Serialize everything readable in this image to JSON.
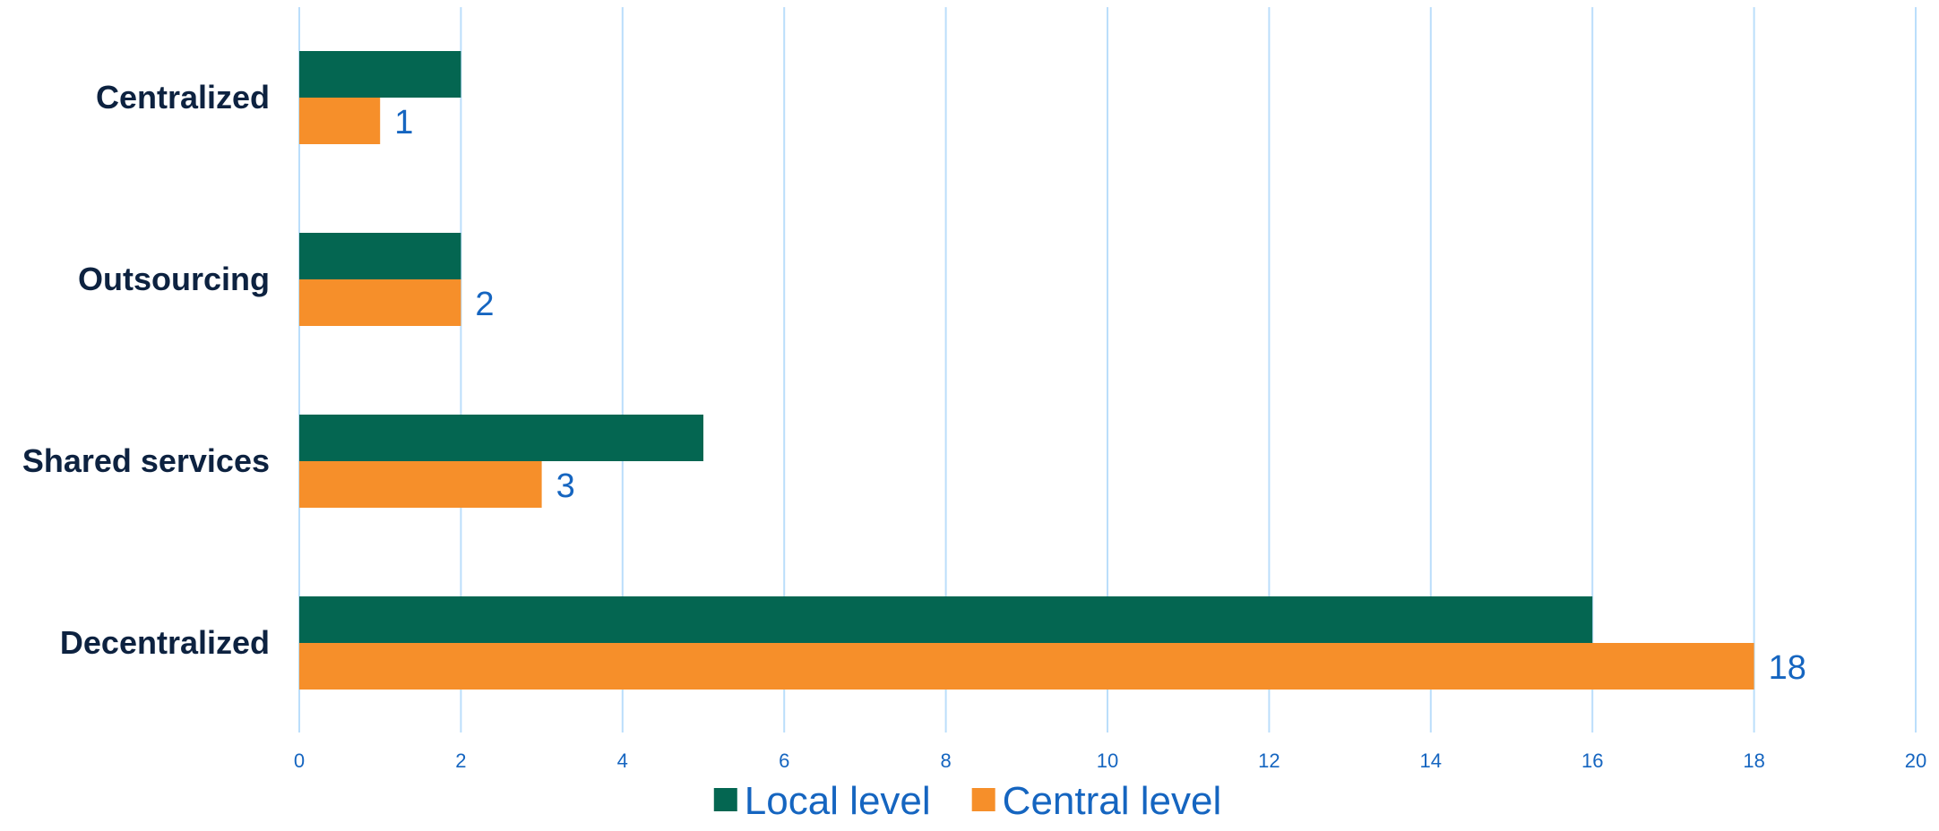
{
  "chart_data": {
    "type": "bar",
    "orientation": "horizontal",
    "categories": [
      "Centralized",
      "Outsourcing",
      "Shared services",
      "Decentralized"
    ],
    "series": [
      {
        "name": "Local level",
        "values": [
          2,
          2,
          5,
          16
        ],
        "color": "#046651"
      },
      {
        "name": "Central level",
        "values": [
          1,
          2,
          3,
          18
        ],
        "color": "#F68F2A"
      }
    ],
    "data_labels": {
      "series": "Central level",
      "values": [
        "1",
        "2",
        "3",
        "18"
      ]
    },
    "x_ticks": [
      "0",
      "2",
      "4",
      "6",
      "8",
      "10",
      "12",
      "14",
      "16",
      "18",
      "20"
    ],
    "xlim": [
      0,
      20
    ],
    "grid": "vertical",
    "legend_position": "bottom",
    "title": "",
    "xlabel": "",
    "ylabel": ""
  },
  "colors": {
    "category_text": "#0D2240",
    "tick_text": "#1565C0",
    "data_label_text": "#1565C0",
    "legend_text": "#1565C0",
    "gridline": "#BBDEFB"
  }
}
